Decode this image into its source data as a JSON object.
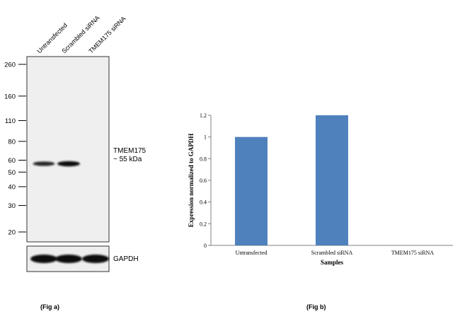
{
  "fig_a": {
    "caption": "(Fig a)",
    "lane_labels": [
      "Untransfected",
      "Scrambled siRNA",
      "TMEM175 siRNA"
    ],
    "markers": [
      "260",
      "160",
      "110",
      "80",
      "60",
      "50",
      "40",
      "30",
      "20"
    ],
    "marker_kda": [
      260,
      160,
      110,
      80,
      60,
      50,
      40,
      30,
      20
    ],
    "target_label": "TMEM175",
    "target_size": "~ 55 kDa",
    "target_kda": 55,
    "target_band_intensity": [
      0.75,
      1.0,
      0
    ],
    "loading_label": "GAPDH",
    "loading_band_intensity": [
      1.0,
      1.0,
      1.0
    ]
  },
  "fig_b": {
    "caption": "(Fig b)",
    "chart_data": {
      "type": "bar",
      "categories": [
        "Untransfected",
        "Scrambled siRNA",
        "TMEM175 siRNA"
      ],
      "values": [
        1.0,
        1.2,
        0.0
      ],
      "xlabel": "Samples",
      "ylabel": "Expression  normalized to GAPDH",
      "ylim": [
        0,
        1.2
      ],
      "yticks": [
        0,
        0.2,
        0.4,
        0.6,
        0.8,
        1,
        1.2
      ],
      "ytick_labels": [
        "0",
        "0.2",
        "0.4",
        "0.6",
        "0.8",
        "1",
        "1.2"
      ],
      "bar_color": "#4f81bd",
      "grid": false,
      "legend": "none"
    }
  }
}
